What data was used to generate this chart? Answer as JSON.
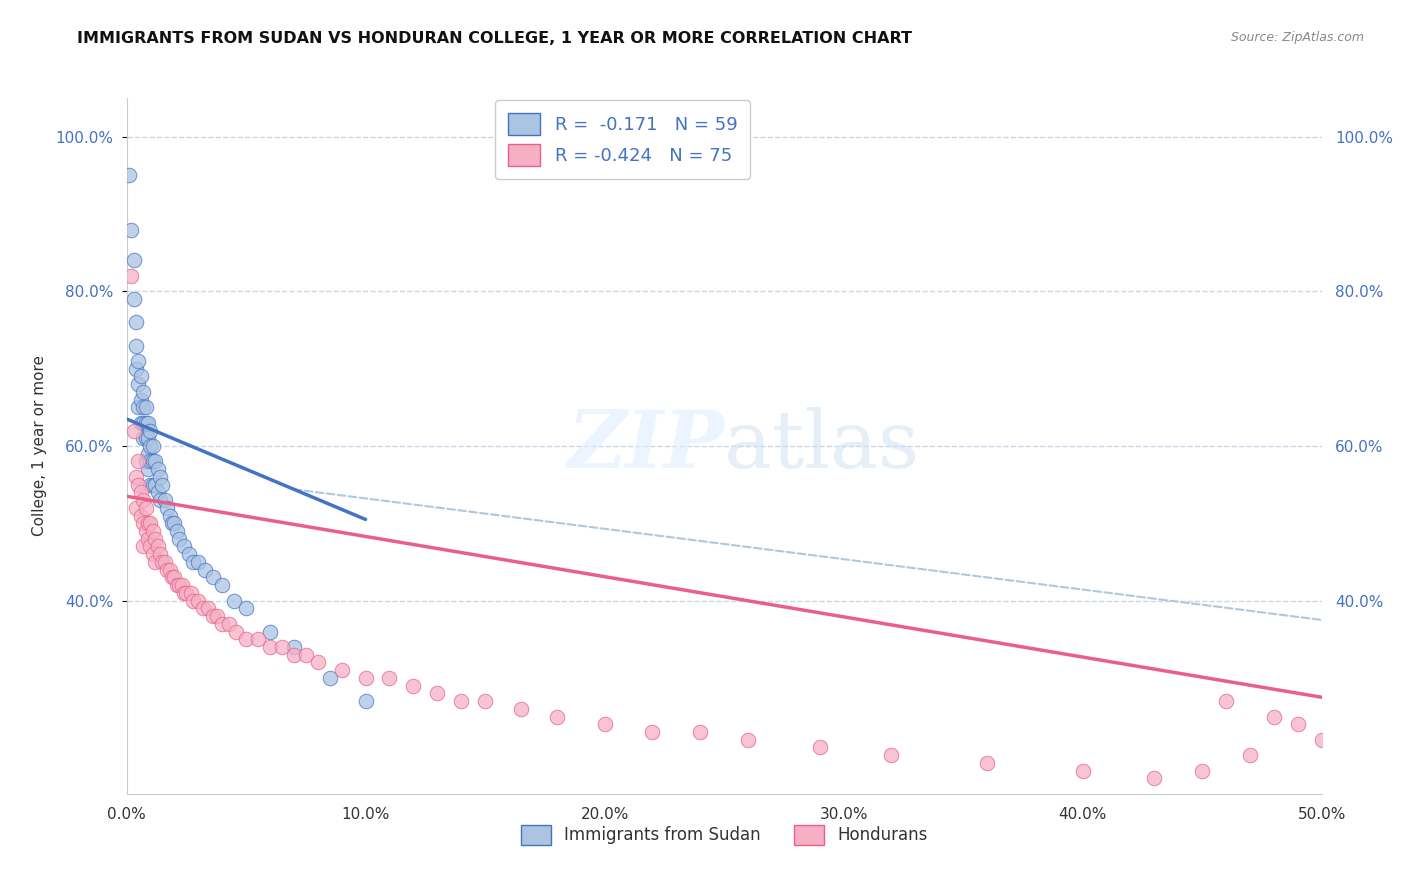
{
  "title": "IMMIGRANTS FROM SUDAN VS HONDURAN COLLEGE, 1 YEAR OR MORE CORRELATION CHART",
  "source": "Source: ZipAtlas.com",
  "ylabel": "College, 1 year or more",
  "legend_label_1": "Immigrants from Sudan",
  "legend_label_2": "Hondurans",
  "R1": "-0.171",
  "N1": "59",
  "R2": "-0.424",
  "N2": "75",
  "color_blue": "#aac4e2",
  "color_pink": "#f5b0c5",
  "line_color_blue": "#4472c4",
  "line_color_pink": "#e8608a",
  "line_color_dashed": "#b0c8dc",
  "xlim": [
    0.0,
    0.5
  ],
  "ylim": [
    0.15,
    1.05
  ],
  "ytick_vals": [
    0.4,
    0.6,
    0.8,
    1.0
  ],
  "xtick_vals": [
    0.0,
    0.1,
    0.2,
    0.3,
    0.4,
    0.5
  ],
  "background_color": "#ffffff",
  "grid_color": "#c8d8e8",
  "sudan_x": [
    0.001,
    0.002,
    0.003,
    0.003,
    0.004,
    0.004,
    0.004,
    0.005,
    0.005,
    0.005,
    0.006,
    0.006,
    0.006,
    0.007,
    0.007,
    0.007,
    0.007,
    0.008,
    0.008,
    0.008,
    0.008,
    0.009,
    0.009,
    0.009,
    0.009,
    0.01,
    0.01,
    0.01,
    0.01,
    0.011,
    0.011,
    0.011,
    0.012,
    0.012,
    0.013,
    0.013,
    0.014,
    0.014,
    0.015,
    0.016,
    0.017,
    0.018,
    0.019,
    0.02,
    0.021,
    0.022,
    0.024,
    0.026,
    0.028,
    0.03,
    0.033,
    0.036,
    0.04,
    0.045,
    0.05,
    0.06,
    0.07,
    0.085,
    0.1
  ],
  "sudan_y": [
    0.95,
    0.88,
    0.84,
    0.79,
    0.76,
    0.73,
    0.7,
    0.71,
    0.68,
    0.65,
    0.69,
    0.66,
    0.63,
    0.67,
    0.65,
    0.63,
    0.61,
    0.65,
    0.63,
    0.61,
    0.58,
    0.63,
    0.61,
    0.59,
    0.57,
    0.62,
    0.6,
    0.58,
    0.55,
    0.6,
    0.58,
    0.55,
    0.58,
    0.55,
    0.57,
    0.54,
    0.56,
    0.53,
    0.55,
    0.53,
    0.52,
    0.51,
    0.5,
    0.5,
    0.49,
    0.48,
    0.47,
    0.46,
    0.45,
    0.45,
    0.44,
    0.43,
    0.42,
    0.4,
    0.39,
    0.36,
    0.34,
    0.3,
    0.27
  ],
  "honduran_x": [
    0.002,
    0.003,
    0.004,
    0.004,
    0.005,
    0.005,
    0.006,
    0.006,
    0.007,
    0.007,
    0.007,
    0.008,
    0.008,
    0.009,
    0.009,
    0.01,
    0.01,
    0.011,
    0.011,
    0.012,
    0.012,
    0.013,
    0.014,
    0.015,
    0.016,
    0.017,
    0.018,
    0.019,
    0.02,
    0.021,
    0.022,
    0.023,
    0.024,
    0.025,
    0.027,
    0.028,
    0.03,
    0.032,
    0.034,
    0.036,
    0.038,
    0.04,
    0.043,
    0.046,
    0.05,
    0.055,
    0.06,
    0.065,
    0.07,
    0.075,
    0.08,
    0.09,
    0.1,
    0.11,
    0.12,
    0.13,
    0.14,
    0.15,
    0.165,
    0.18,
    0.2,
    0.22,
    0.24,
    0.26,
    0.29,
    0.32,
    0.36,
    0.4,
    0.43,
    0.46,
    0.48,
    0.49,
    0.5,
    0.47,
    0.45
  ],
  "honduran_y": [
    0.82,
    0.62,
    0.56,
    0.52,
    0.58,
    0.55,
    0.54,
    0.51,
    0.53,
    0.5,
    0.47,
    0.52,
    0.49,
    0.5,
    0.48,
    0.5,
    0.47,
    0.49,
    0.46,
    0.48,
    0.45,
    0.47,
    0.46,
    0.45,
    0.45,
    0.44,
    0.44,
    0.43,
    0.43,
    0.42,
    0.42,
    0.42,
    0.41,
    0.41,
    0.41,
    0.4,
    0.4,
    0.39,
    0.39,
    0.38,
    0.38,
    0.37,
    0.37,
    0.36,
    0.35,
    0.35,
    0.34,
    0.34,
    0.33,
    0.33,
    0.32,
    0.31,
    0.3,
    0.3,
    0.29,
    0.28,
    0.27,
    0.27,
    0.26,
    0.25,
    0.24,
    0.23,
    0.23,
    0.22,
    0.21,
    0.2,
    0.19,
    0.18,
    0.17,
    0.27,
    0.25,
    0.24,
    0.22,
    0.2,
    0.18
  ],
  "blue_line_x": [
    0.0,
    0.1
  ],
  "blue_line_y": [
    0.635,
    0.505
  ],
  "pink_line_x": [
    0.0,
    0.5
  ],
  "pink_line_y": [
    0.535,
    0.275
  ],
  "dashed_line_x": [
    0.07,
    0.5
  ],
  "dashed_line_y": [
    0.544,
    0.375
  ]
}
